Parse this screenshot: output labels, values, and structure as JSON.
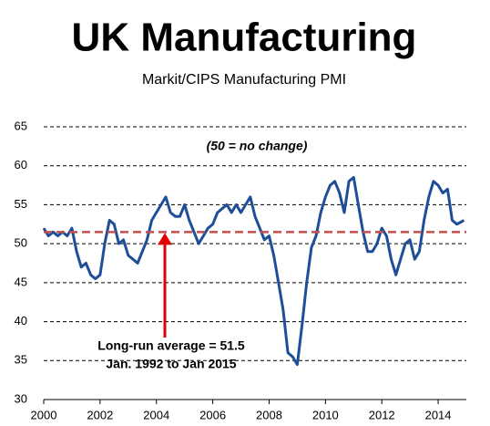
{
  "chart_data": {
    "type": "line",
    "title": "UK Manufacturing",
    "subtitle": "Markit/CIPS Manufacturing PMI",
    "annotation": "(50 = no change)",
    "average_label": [
      "Long-run average = 51.5",
      "Jan. 1992 to Jan 2015"
    ],
    "average": 51.5,
    "average_color": "#c0504d",
    "x": [
      2000,
      2000.167,
      2000.333,
      2000.5,
      2000.667,
      2000.833,
      2001,
      2001.167,
      2001.333,
      2001.5,
      2001.667,
      2001.833,
      2002,
      2002.167,
      2002.333,
      2002.5,
      2002.667,
      2002.833,
      2003,
      2003.167,
      2003.333,
      2003.5,
      2003.667,
      2003.833,
      2004,
      2004.167,
      2004.333,
      2004.5,
      2004.667,
      2004.833,
      2005,
      2005.167,
      2005.333,
      2005.5,
      2005.667,
      2005.833,
      2006,
      2006.167,
      2006.333,
      2006.5,
      2006.667,
      2006.833,
      2007,
      2007.167,
      2007.333,
      2007.5,
      2007.667,
      2007.833,
      2008,
      2008.167,
      2008.333,
      2008.5,
      2008.667,
      2008.833,
      2009,
      2009.167,
      2009.333,
      2009.5,
      2009.667,
      2009.833,
      2010,
      2010.167,
      2010.333,
      2010.5,
      2010.667,
      2010.833,
      2011,
      2011.167,
      2011.333,
      2011.5,
      2011.667,
      2011.833,
      2012,
      2012.167,
      2012.333,
      2012.5,
      2012.667,
      2012.833,
      2013,
      2013.167,
      2013.333,
      2013.5,
      2013.667,
      2013.833,
      2014,
      2014.167,
      2014.333,
      2014.5,
      2014.667,
      2014.917
    ],
    "series": [
      {
        "name": "PMI",
        "color": "#1f4e99",
        "values": [
          52,
          51,
          51.5,
          51,
          51.5,
          51,
          52,
          49,
          47,
          47.5,
          46,
          45.5,
          46,
          50,
          53,
          52.5,
          50,
          50.5,
          48.5,
          48,
          47.5,
          49,
          50.5,
          53,
          54,
          55,
          56,
          54,
          53.5,
          53.5,
          55,
          53,
          51.5,
          50,
          51,
          52,
          52.5,
          54,
          54.5,
          55,
          54,
          55,
          54,
          55,
          56,
          53.5,
          52,
          50.5,
          51,
          48.5,
          45,
          41.5,
          36,
          35.5,
          34.5,
          39.5,
          45,
          49.5,
          51,
          54,
          56,
          57.5,
          58,
          56.5,
          54,
          58,
          58.5,
          55,
          51.5,
          49,
          49,
          50,
          52,
          51,
          48,
          46,
          48,
          50,
          50.5,
          48,
          49,
          53,
          56,
          58,
          57.5,
          56.5,
          57,
          53,
          52.5,
          53
        ]
      }
    ],
    "xlim": [
      2000,
      2015
    ],
    "xticks": [
      2000,
      2002,
      2004,
      2006,
      2008,
      2010,
      2012,
      2014
    ],
    "ylim": [
      30,
      65
    ],
    "yticks": [
      30,
      35,
      40,
      45,
      50,
      55,
      60,
      65
    ],
    "grid": true
  }
}
